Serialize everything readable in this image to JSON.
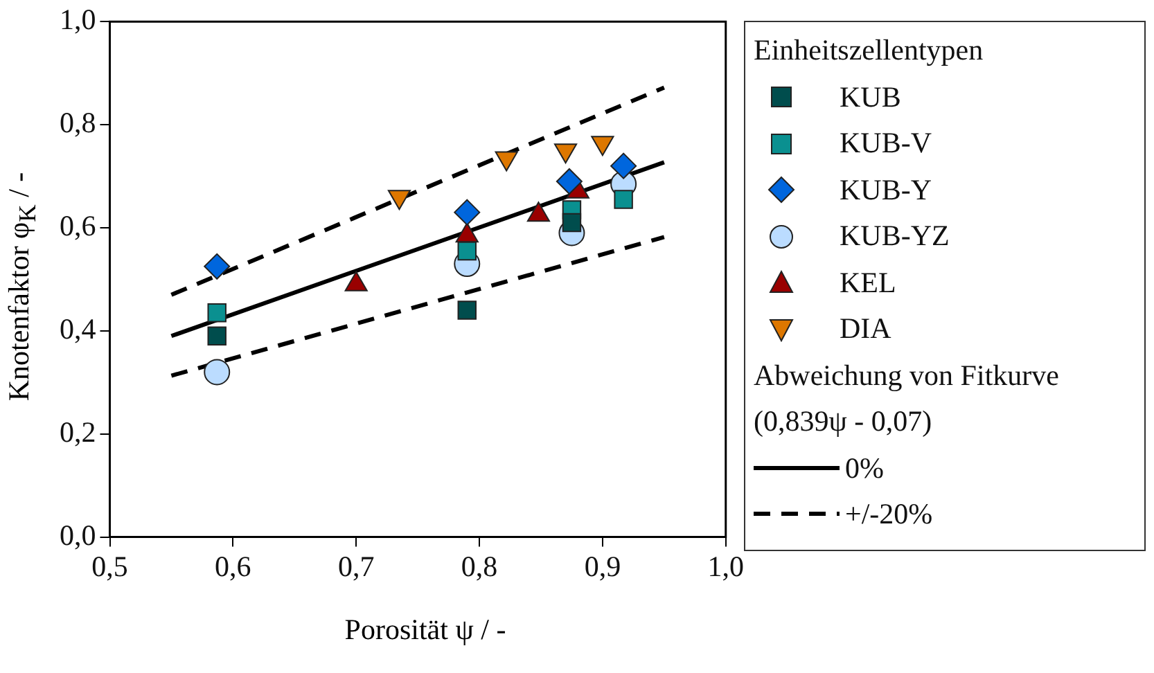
{
  "chart_data": {
    "type": "scatter",
    "xlabel": "Porosität ψ / -",
    "ylabel": "Knotenfaktor φ$_{K}$ / -",
    "legend_title": "Einheitszellentypen",
    "legend": "right",
    "grid": false,
    "xlim": [
      0.5,
      1.0
    ],
    "xticks": [
      {
        "value": 0.5,
        "label": "0,5"
      },
      {
        "value": 0.6,
        "label": "0,6"
      },
      {
        "value": 0.7,
        "label": "0,7"
      },
      {
        "value": 0.8,
        "label": "0,8"
      },
      {
        "value": 0.9,
        "label": "0,9"
      },
      {
        "value": 1.0,
        "label": "1,0"
      }
    ],
    "ylim": [
      0,
      1.0
    ],
    "yticks": [
      {
        "value": 0,
        "label": "0,0"
      },
      {
        "value": 0.2,
        "label": "0,2"
      },
      {
        "value": 0.4,
        "label": "0,4"
      },
      {
        "value": 0.6,
        "label": "0,6"
      },
      {
        "value": 0.8,
        "label": "0,8"
      },
      {
        "value": 1.0,
        "label": "1,0"
      }
    ],
    "annotations": [
      "Abweichung von Fitkurve",
      "(0,839ψ - 0,07)"
    ],
    "series": [
      {
        "name": "KUB",
        "color": "#004d4d",
        "marker": "square",
        "x": [
          0.587,
          0.79,
          0.875
        ],
        "values": [
          0.39,
          0.44,
          0.61
        ]
      },
      {
        "name": "KUB-V",
        "color": "#0a9090",
        "marker": "square",
        "x": [
          0.587,
          0.79,
          0.875,
          0.917
        ],
        "values": [
          0.435,
          0.555,
          0.635,
          0.655
        ]
      },
      {
        "name": "KUB-Y",
        "color": "#0066dd",
        "marker": "diamond",
        "x": [
          0.587,
          0.79,
          0.873,
          0.917
        ],
        "values": [
          0.525,
          0.63,
          0.69,
          0.72
        ]
      },
      {
        "name": "KUB-YZ",
        "color": "#bbdcff",
        "marker": "circle",
        "x": [
          0.587,
          0.79,
          0.875,
          0.917
        ],
        "values": [
          0.32,
          0.53,
          0.59,
          0.685
        ]
      },
      {
        "name": "KEL",
        "color": "#990000",
        "marker": "triangle",
        "x": [
          0.7,
          0.79,
          0.848,
          0.88
        ],
        "values": [
          0.49,
          0.585,
          0.625,
          0.67
        ]
      },
      {
        "name": "DIA",
        "color": "#dd7700",
        "marker": "triangle_down",
        "x": [
          0.735,
          0.822,
          0.87,
          0.9
        ],
        "values": [
          0.66,
          0.735,
          0.75,
          0.765
        ]
      },
      {
        "name": "0%",
        "type": "line",
        "color": "#000000",
        "line_style": "solid",
        "marker": "none",
        "x": [
          0.55,
          0.95
        ],
        "values": [
          0.39,
          0.727
        ]
      },
      {
        "name": "+/-20%",
        "type": "line",
        "color": "#000000",
        "line_style": "dashed",
        "marker": "none",
        "x": [
          0.55,
          0.95
        ],
        "values": [
          0.47,
          0.872
        ]
      },
      {
        "type": "line",
        "color": "#000000",
        "line_style": "dashed",
        "marker": "none",
        "x": [
          0.55,
          0.95
        ],
        "values": [
          0.313,
          0.582
        ]
      }
    ]
  }
}
